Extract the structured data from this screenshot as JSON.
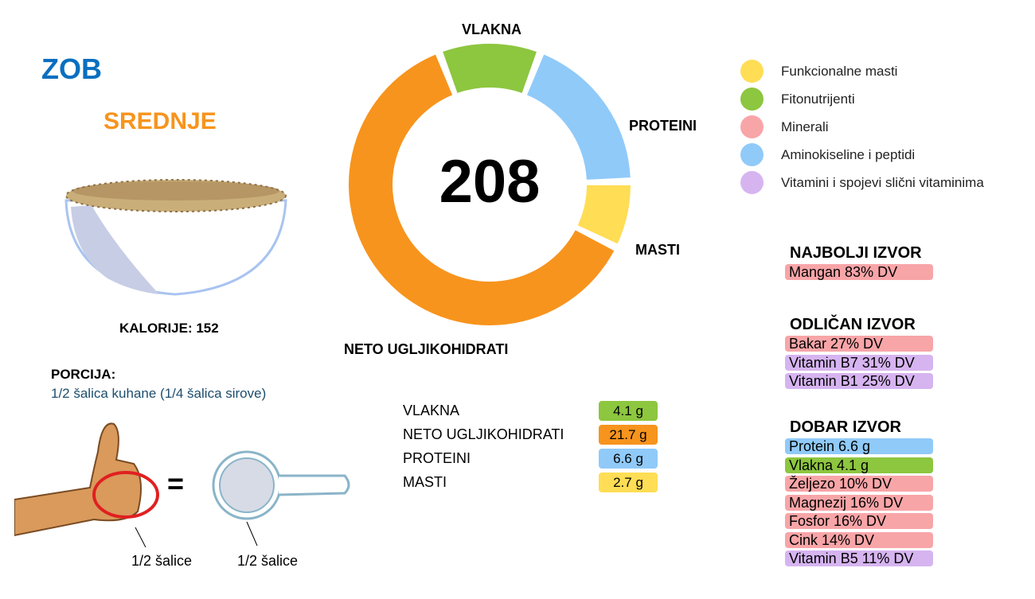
{
  "food": "ZOB",
  "level": "SREDNJE",
  "calories": "KALORIJE: 152",
  "portion": {
    "heading": "PORCIJA:",
    "text": "1/2 šalica kuhane (1/4 šalica sirove)",
    "left_caption": "1/2 šalice",
    "right_caption": "1/2 šalice",
    "equals": "="
  },
  "colors": {
    "fiber": "#8dc63f",
    "carbs": "#f7941d",
    "protein": "#90caf9",
    "fat": "#ffdd55",
    "mineral": "#f8a5a8",
    "vitamin": "#d6b4f0",
    "title": "#0a6fc0"
  },
  "chart_data": {
    "type": "pie",
    "center_label": "208",
    "categories": [
      "VLAKNA",
      "PROTEINI",
      "MASTI",
      "NETO UGLJIKOHIDRATI"
    ],
    "values": [
      4.1,
      6.6,
      2.7,
      21.7
    ],
    "colors": [
      "#8dc63f",
      "#90caf9",
      "#ffdd55",
      "#f7941d"
    ]
  },
  "legend": [
    {
      "label": "Funkcionalne masti",
      "color": "#ffdd55"
    },
    {
      "label": "Fitonutrijenti",
      "color": "#8dc63f"
    },
    {
      "label": "Minerali",
      "color": "#f8a5a8"
    },
    {
      "label": "Aminokiseline i peptidi",
      "color": "#90caf9"
    },
    {
      "label": "Vitamini i spojevi slični vitaminima",
      "color": "#d6b4f0"
    }
  ],
  "macros": [
    {
      "label": "VLAKNA",
      "value": "4.1 g",
      "color": "#8dc63f"
    },
    {
      "label": "NETO UGLJIKOHIDRATI",
      "value": "21.7 g",
      "color": "#f7941d"
    },
    {
      "label": "PROTEINI",
      "value": "6.6 g",
      "color": "#90caf9"
    },
    {
      "label": "MASTI",
      "value": "2.7 g",
      "color": "#ffdd55"
    }
  ],
  "sources": [
    {
      "heading": "NAJBOLJI IZVOR",
      "items": [
        {
          "text": "Mangan 83% DV",
          "color": "#f8a5a8"
        }
      ]
    },
    {
      "heading": "ODLIČAN IZVOR",
      "items": [
        {
          "text": "Bakar 27% DV",
          "color": "#f8a5a8"
        },
        {
          "text": "Vitamin B7 31% DV",
          "color": "#d6b4f0"
        },
        {
          "text": "Vitamin B1 25% DV",
          "color": "#d6b4f0"
        }
      ]
    },
    {
      "heading": "DOBAR IZVOR",
      "items": [
        {
          "text": "Protein 6.6 g",
          "color": "#90caf9"
        },
        {
          "text": "Vlakna 4.1 g",
          "color": "#8dc63f"
        },
        {
          "text": "Željezo 10% DV",
          "color": "#f8a5a8"
        },
        {
          "text": "Magnezij 16% DV",
          "color": "#f8a5a8"
        },
        {
          "text": "Fosfor 16% DV",
          "color": "#f8a5a8"
        },
        {
          "text": "Cink 14% DV",
          "color": "#f8a5a8"
        },
        {
          "text": "Vitamin B5 11% DV",
          "color": "#d6b4f0"
        }
      ]
    }
  ]
}
